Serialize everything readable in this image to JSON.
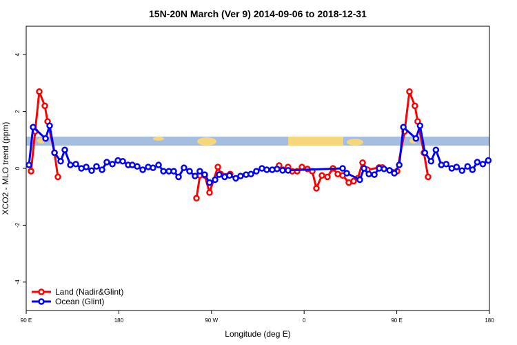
{
  "chart_data": {
    "type": "line",
    "title": "15N-20N March (Ver 9)   2014-09-06 to 2018-12-31",
    "x_label": "Longitude (deg E)",
    "y_label": "XCO2 - MLO trend (ppm)",
    "xlim": [
      90,
      540
    ],
    "xticks": [
      {
        "value": 90,
        "label": "90 E"
      },
      {
        "value": 180,
        "label": "180"
      },
      {
        "value": 270,
        "label": "90 W"
      },
      {
        "value": 360,
        "label": "0"
      },
      {
        "value": 450,
        "label": "90 E"
      },
      {
        "value": 540,
        "label": "180"
      }
    ],
    "ylim": [
      -5,
      5
    ],
    "yticks": [
      -4,
      -2,
      0,
      2,
      4
    ],
    "legend": "bottom-left",
    "series": [
      {
        "name": "Land (Nadir&Glint)",
        "color": "#ff0000",
        "x": [
          94.7,
          98.7,
          102.7,
          108.1,
          110.8,
          117.5,
          120.8,
          190.0,
          255.4,
          258.8,
          263.4,
          268.1,
          276.2,
          278.9,
          288.2,
          310.0,
          335.7,
          339.7,
          344.4,
          348.5,
          353.2,
          357.9,
          363.2,
          367.9,
          371.9,
          377.3,
          382.6,
          388.0,
          392.7,
          397.4,
          403.4,
          408.1,
          412.1,
          416.8,
          421.5,
          432.8,
          436.1,
          450.3,
          457.6,
          462.3,
          467.6,
          470.3,
          476.4,
          480.4
        ],
        "values": [
          -0.1,
          1.3,
          2.7,
          2.2,
          1.65,
          0.55,
          -0.3,
          null,
          -1.05,
          -0.25,
          -0.25,
          -0.85,
          0.05,
          -0.2,
          -0.2,
          null,
          0.1,
          -0.05,
          0.05,
          -0.1,
          -0.1,
          0.05,
          -0.02,
          -0.1,
          -0.7,
          -0.25,
          -0.3,
          0.0,
          -0.2,
          -0.25,
          -0.5,
          -0.45,
          -0.35,
          0.2,
          -0.05,
          0.03,
          0.03,
          -0.1,
          1.3,
          2.7,
          2.2,
          1.65,
          0.55,
          -0.3
        ]
      },
      {
        "name": "Ocean (Glint)",
        "color": "#0000ff",
        "x": [
          92.7,
          96.7,
          108.8,
          112.8,
          117.5,
          123.5,
          127.5,
          132.9,
          138.2,
          143.6,
          148.3,
          153.6,
          158.3,
          163.7,
          168.3,
          173.7,
          179.1,
          183.8,
          189.1,
          193.1,
          197.8,
          203.2,
          208.5,
          213.2,
          218.6,
          223.3,
          228.6,
          233.3,
          238.0,
          243.3,
          248.7,
          254.0,
          258.7,
          263.4,
          268.1,
          273.5,
          277.5,
          282.8,
          287.5,
          293.6,
          298.2,
          303.6,
          308.3,
          313.6,
          319.0,
          323.7,
          329.0,
          333.7,
          339.1,
          344.4,
          397.4,
          401.4,
          414.1,
          418.2,
          422.9,
          428.2,
          432.9,
          437.6,
          443.0,
          447.6,
          452.4,
          456.4,
          468.6,
          472.6,
          477.3,
          483.3,
          488.0,
          493.3,
          498.0,
          503.4,
          508.1,
          513.4,
          518.8,
          523.5,
          528.2,
          533.6,
          538.9
        ],
        "values": [
          0.12,
          1.45,
          1.05,
          1.5,
          0.55,
          0.25,
          0.65,
          0.12,
          0.15,
          0.0,
          0.05,
          -0.08,
          0.07,
          -0.05,
          0.22,
          0.15,
          0.28,
          0.25,
          0.12,
          0.12,
          0.07,
          -0.05,
          0.05,
          0.02,
          0.12,
          -0.1,
          -0.1,
          -0.1,
          -0.3,
          0.02,
          -0.1,
          -0.27,
          -0.1,
          -0.22,
          -0.5,
          -0.4,
          -0.22,
          -0.3,
          -0.25,
          -0.35,
          -0.27,
          -0.22,
          -0.2,
          -0.1,
          0.0,
          -0.05,
          -0.05,
          -0.02,
          -0.07,
          -0.07,
          0.0,
          -0.17,
          -0.4,
          0.0,
          -0.2,
          -0.22,
          0.0,
          -0.02,
          -0.07,
          -0.17,
          0.12,
          1.45,
          1.05,
          1.5,
          0.55,
          0.25,
          0.65,
          0.12,
          0.15,
          0.0,
          0.05,
          -0.08,
          0.07,
          -0.05,
          0.22,
          0.15,
          0.28
        ]
      }
    ]
  }
}
